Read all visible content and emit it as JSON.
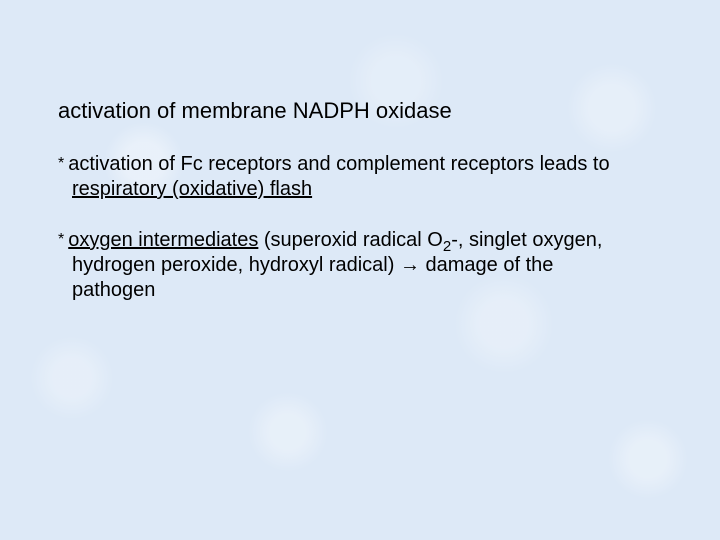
{
  "background_color": "#dde9f7",
  "text_color": "#000000",
  "font_family": "Arial",
  "title_fontsize": 22,
  "body_fontsize": 20,
  "slide_width": 720,
  "slide_height": 540,
  "title": "activation of membrane NADPH oxidase",
  "bullets": [
    {
      "marker": "*",
      "pre": "activation of Fc receptors and complement receptors leads to ",
      "underlined": "respiratory (oxidative) flash",
      "post": ""
    },
    {
      "marker": "*",
      "pre": "",
      "underlined": "oxygen intermediates",
      "post_a": " (superoxid radical O",
      "sub": "2",
      "post_b": "-, singlet oxygen, hydrogen peroxide, hydroxyl radical) → damage of  the pathogen"
    }
  ]
}
